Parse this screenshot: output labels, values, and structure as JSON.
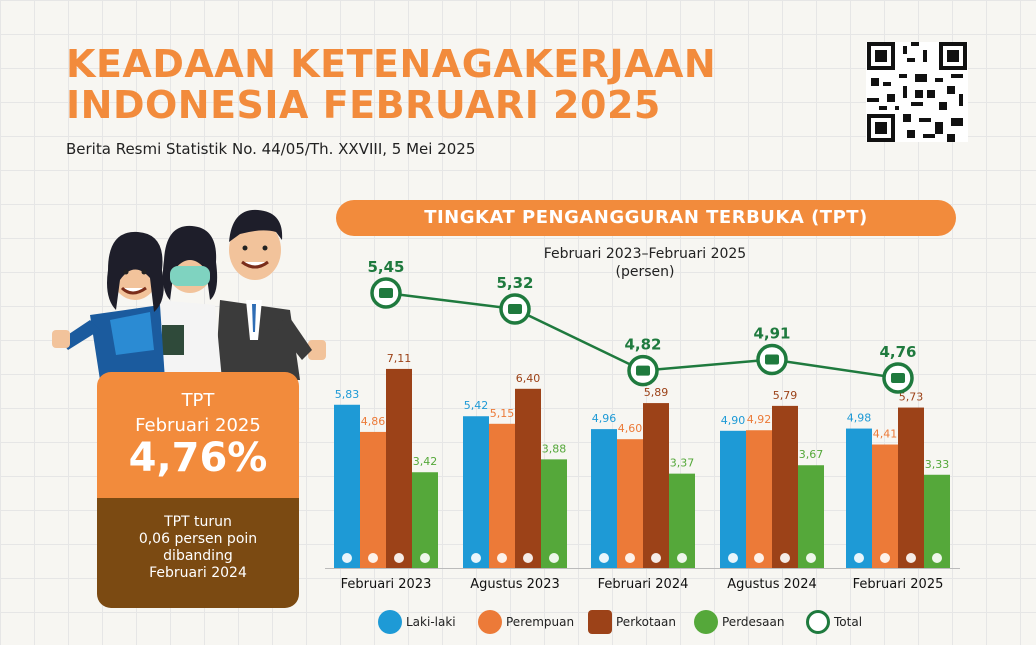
{
  "header": {
    "title_line1": "KEADAAN KETENAGAKERJAAN",
    "title_line2": "INDONESIA FEBRUARI 2025",
    "subtitle": "Berita Resmi Statistik No. 44/05/Th. XXVIII, 5 Mei 2025"
  },
  "tpt_box": {
    "label1": "TPT",
    "label2": "Februari 2025",
    "value": "4,76%",
    "note_line1": "TPT turun",
    "note_line2": "0,06 persen poin",
    "note_line3": "dibanding",
    "note_line4": "Februari 2024"
  },
  "chart_data": {
    "type": "bar",
    "title": "TINGKAT PENGANGGURAN TERBUKA (TPT)",
    "subtitle_line1": "Februari 2023–Februari 2025",
    "subtitle_line2": "(persen)",
    "categories": [
      "Februari 2023",
      "Agustus 2023",
      "Februari 2024",
      "Agustus 2024",
      "Februari 2025"
    ],
    "series": [
      {
        "name": "Laki-laki",
        "color": "#1e9ad6",
        "values": [
          5.83,
          5.42,
          4.96,
          4.9,
          4.98
        ],
        "labels": [
          "5,83",
          "5,42",
          "4,96",
          "4,90",
          "4,98"
        ]
      },
      {
        "name": "Perempuan",
        "color": "#ec7a38",
        "values": [
          4.86,
          5.15,
          4.6,
          4.92,
          4.41
        ],
        "labels": [
          "4,86",
          "5,15",
          "4,60",
          "4,92",
          "4,41"
        ]
      },
      {
        "name": "Perkotaan",
        "color": "#9c4218",
        "values": [
          7.11,
          6.4,
          5.89,
          5.79,
          5.73
        ],
        "labels": [
          "7,11",
          "6,40",
          "5,89",
          "5,79",
          "5,73"
        ]
      },
      {
        "name": "Perdesaan",
        "color": "#55a83a",
        "values": [
          3.42,
          3.88,
          3.37,
          3.67,
          3.33
        ],
        "labels": [
          "3,42",
          "3,88",
          "3,37",
          "3,67",
          "3,33"
        ]
      }
    ],
    "line": {
      "name": "Total",
      "color": "#1f7a3e",
      "values": [
        5.45,
        5.32,
        4.82,
        4.91,
        4.76
      ],
      "labels": [
        "5,45",
        "5,32",
        "4,82",
        "4,91",
        "4,76"
      ]
    },
    "ylim": [
      0,
      8
    ],
    "grid": false,
    "legend": "bottom"
  },
  "legend_icons": {
    "Laki-laki": "man-icon",
    "Perempuan": "woman-icon",
    "Perkotaan": "building-icon",
    "Perdesaan": "house-icon",
    "Total": "briefcase-icon"
  }
}
